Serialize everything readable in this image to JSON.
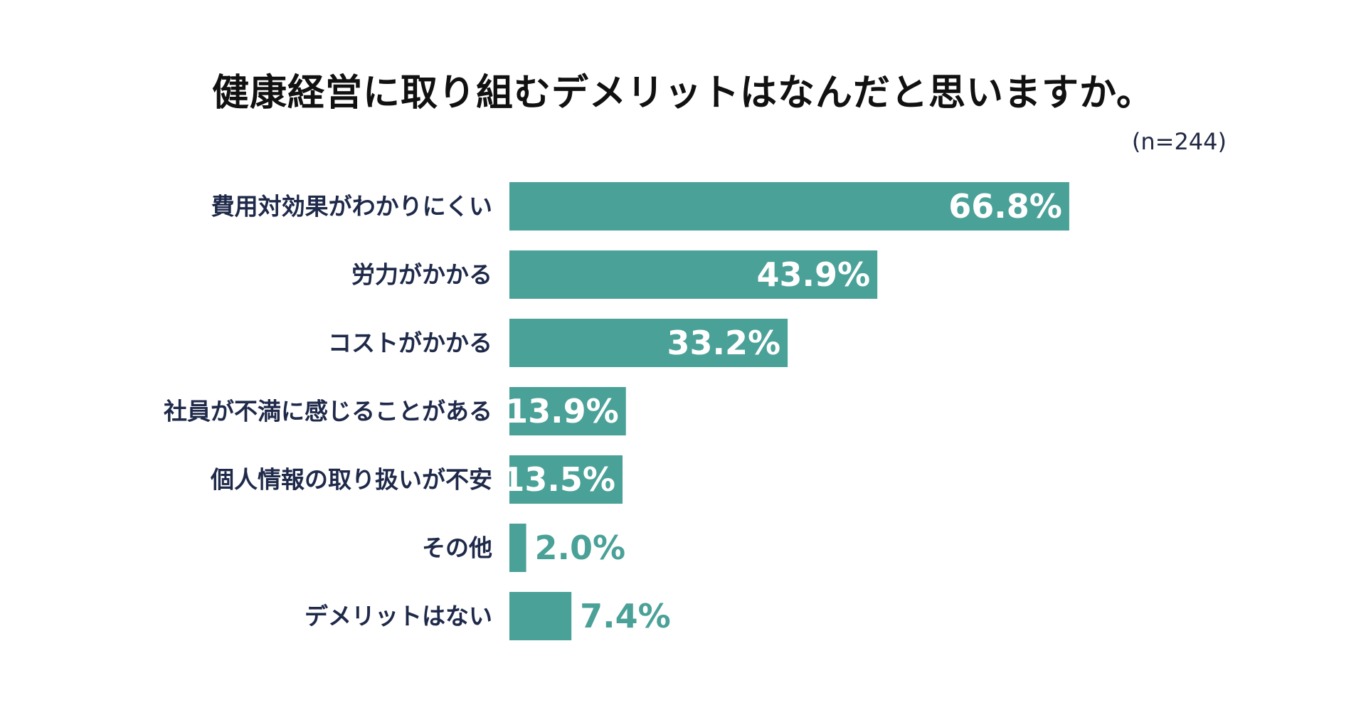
{
  "chart_data": {
    "type": "bar",
    "orientation": "horizontal",
    "title": "健康経営に取り組むデメリットはなんだと思いますか。",
    "note": "(n=244)",
    "categories": [
      "費用対効果がわかりにくい",
      "労力がかかる",
      "コストがかかる",
      "社員が不満に感じることがある",
      "個人情報の取り扱いが不安",
      "その他",
      "デメリットはない"
    ],
    "values": [
      66.8,
      43.9,
      33.2,
      13.9,
      13.5,
      2.0,
      7.4
    ],
    "value_labels": [
      "66.8%",
      "43.9%",
      "33.2%",
      "13.9%",
      "13.5%",
      "2.0%",
      "7.4%"
    ],
    "unit": "%",
    "xlim": [
      0,
      100
    ],
    "grid": false,
    "legend": "none",
    "colors": {
      "bar": "#4aa198",
      "label_inside": "#ffffff",
      "label_outside": "#4aa198",
      "category_text": "#1f2a4a"
    }
  }
}
